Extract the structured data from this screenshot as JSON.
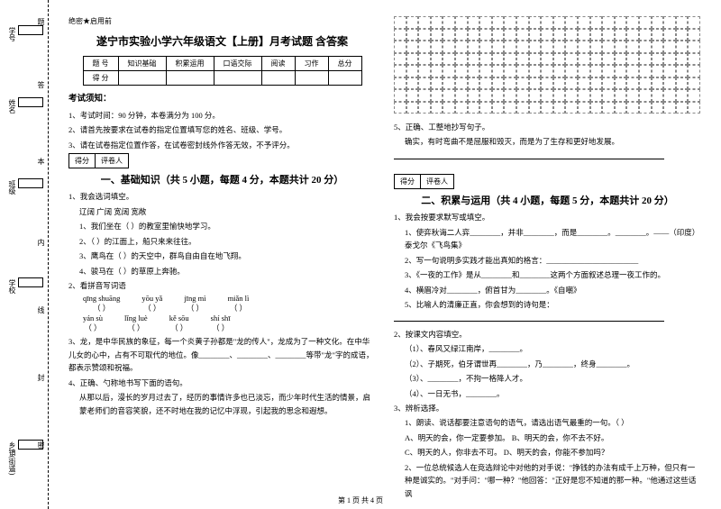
{
  "binding": {
    "labels": [
      "学号",
      "姓名",
      "班级",
      "学校",
      "乡镇(街道)"
    ],
    "side_texts": [
      "题",
      "答",
      "本",
      "内",
      "线",
      "封",
      "密"
    ]
  },
  "header_small": "绝密★启用前",
  "title": "遂宁市实验小学六年级语文【上册】月考试题 含答案",
  "score_table": {
    "headers": [
      "题  号",
      "知识基础",
      "积累运用",
      "口语交际",
      "阅读",
      "习作",
      "总分"
    ],
    "row2": "得  分"
  },
  "notice": {
    "head": "考试须知：",
    "items": [
      "1、考试时间：90 分钟，本卷满分为 100 分。",
      "2、请首先按要求在试卷的指定位置填写您的姓名、班级、学号。",
      "3、请在试卷指定位置作答，在试卷密封线外作答无效，不予评分。"
    ]
  },
  "scorebox": {
    "a": "得分",
    "b": "评卷人"
  },
  "section1": {
    "title": "一、基础知识（共 5 小题，每题 4 分，本题共计 20 分）",
    "q1": "1、我会选词填空。",
    "q1_words": "辽阔      广阔      宽阔      宽敞",
    "q1_items": [
      "1、我们坐在（         ）的教室里愉快地学习。",
      "2、（         ）的江面上，船只来来往往。",
      "3、鹰鸟在（         ）的天空中，群鸟自由自在地飞翔。",
      "4、骏马在（         ）的草原上奔驰。"
    ],
    "q2": "2、看拼音写词语",
    "pinyin": [
      {
        "p": "qīng shuāng",
        "b": "（    ）"
      },
      {
        "p": "yōu yǎ",
        "b": "（    ）"
      },
      {
        "p": "jīng mì",
        "b": "（    ）"
      },
      {
        "p": "miǎn lì",
        "b": "（    ）"
      }
    ],
    "pinyin2": [
      {
        "p": "yán sù",
        "b": "（    ）"
      },
      {
        "p": "lǐng luè",
        "b": "（    ）"
      },
      {
        "p": "kě sōu",
        "b": "（    ）"
      },
      {
        "p": "shí shī",
        "b": "（    ）"
      }
    ],
    "q3": "3、龙，是中华民族的象征，每一个炎黄子孙都是\"龙的传人\"，龙成为了一种文化。在中华儿女的心中，占有不可取代的地位。像________、________、________等带\"龙\"字的成语，都表示赞颂和祝福。",
    "q4": "4、正确、勺称地书写下面的语句。",
    "q4_text": "从那以后，漫长的岁月过去了，经历的事情许多也已淡忘，而少年时代生活的情景，启蒙老师们的音容笑貌，还不时地在我的记忆中浮现，引起我的思念和遐想。"
  },
  "col2": {
    "q5": "5、正确、工整地抄写句子。",
    "q5_text": "确实，有时弯曲不是屈服和毁灭，而是为了生存和更好地发展。",
    "section2_title": "二、积累与运用（共 4 小题，每题 5 分，本题共计 20 分）",
    "s2_q1": "1、我会按要求默写或填空。",
    "s2_q1_items": [
      "1、使弈秋诲二人弈________，并非________，而是________。________。——（印度）泰戈尔《飞鸟集》",
      "2、写一句说明多实践才能出真知的格言：________________________",
      "3、《一夜的工作》是从________和________这两个方面叙述总理一夜工作的。",
      "4、横眉冷对________，俯首甘为________。《自嘲》",
      "5、比喻人的清廉正直，你会想到的诗句是："
    ],
    "s2_q2": "2、按课文内容填空。",
    "s2_q2_items": [
      "（1）、春风又绿江南岸，________。",
      "（2）、子期死，伯牙谓世再________，乃________，终身________。",
      "（3）、________，不拘一格降人才。",
      "（4）、一日无书，________。"
    ],
    "s2_q3": "3、辨析选择。",
    "s2_q3_items": [
      "1、朗读、说话都要注意语句的语气，请选出语气最重的一句。（    ）",
      "A、明天的会，你一定要参加。    B、明天的会，你不去不好。",
      "C、明天的人，你非去不可。    D、明天的会，你能不参加吗？",
      "2、一位总统候选人在竞选辩论中对他的对手说：\"挣钱的办法有成千上万种，但只有一种是诚实的。\"对手问：\"哪一种？\"他回答：\"正好是您不知道的那一种。\"他通过这些话讽"
    ]
  },
  "footer": "第 1 页 共 4 页"
}
